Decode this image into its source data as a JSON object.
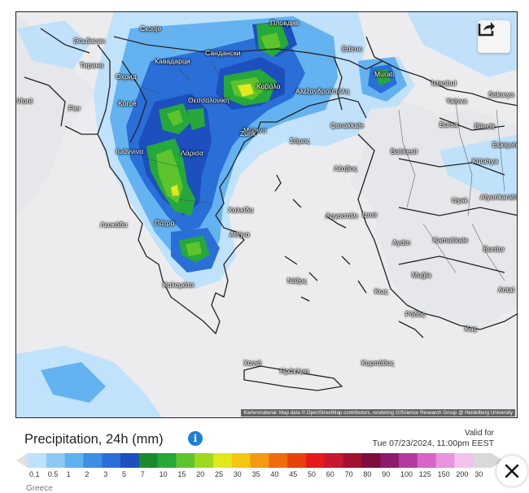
{
  "map": {
    "attribution": "Kartenmaterial: Map data © OpenStreetMap contributors, rendering GIScience Research Group @ Heidelberg University",
    "cities": [
      {
        "name": "Скопје"
      },
      {
        "name": "Пловдив"
      },
      {
        "name": "Эльбасан"
      },
      {
        "name": "Тирана"
      },
      {
        "name": "Кавадарци"
      },
      {
        "name": "Сандански"
      },
      {
        "name": "Edirne"
      },
      {
        "name": "Охрид"
      },
      {
        "name": "Murati"
      },
      {
        "name": "İstanbul"
      },
      {
        "name": "Vlorë"
      },
      {
        "name": "Korçë"
      },
      {
        "name": "Θεσσαλονίκη"
      },
      {
        "name": "Καβάλα"
      },
      {
        "name": "Αλεξανδρούπολη"
      },
      {
        "name": "Yalova"
      },
      {
        "name": "Sakarya"
      },
      {
        "name": "Fier"
      },
      {
        "name": "Bursa"
      },
      {
        "name": "Bilecik"
      },
      {
        "name": "Ιωάννινα"
      },
      {
        "name": "Λάρισα"
      },
      {
        "name": "Σάμος"
      },
      {
        "name": "Μύρινα"
      },
      {
        "name": "Çanakkale"
      },
      {
        "name": "Balıkesir"
      },
      {
        "name": "Eskişehir"
      },
      {
        "name": "Kütahya"
      },
      {
        "name": "Λευκάδα"
      },
      {
        "name": "Χαλκίδα"
      },
      {
        "name": "Izmir"
      },
      {
        "name": "Λέσβος"
      },
      {
        "name": "Uşak"
      },
      {
        "name": "Afyonkarahisar"
      },
      {
        "name": "Αργοστόλι"
      },
      {
        "name": "Πάτρα"
      },
      {
        "name": "Αθήνα"
      },
      {
        "name": "Aydın"
      },
      {
        "name": "Kamalıkale"
      },
      {
        "name": "Burdur"
      },
      {
        "name": "Muğla"
      },
      {
        "name": "Νάξος"
      },
      {
        "name": "Καλαμάτα"
      },
      {
        "name": "Κως"
      },
      {
        "name": "Antal"
      },
      {
        "name": "Ρόδος"
      },
      {
        "name": "Kaş"
      },
      {
        "name": "Χανιά"
      },
      {
        "name": "Ηράκλειο"
      },
      {
        "name": "Καρπάθος"
      },
      {
        "name": "Zurik"
      },
      {
        "name": "Kraljevo"
      }
    ]
  },
  "legend": {
    "title": "Precipitation, 24h (mm)",
    "info_icon": "info-icon",
    "valid_for": "Valid for",
    "valid_time": "Tue 07/23/2024, 11:00pm EEST",
    "region": "Greece",
    "scale": [
      {
        "label": "0.1",
        "color": "#bfe1fb"
      },
      {
        "label": "0.5",
        "color": "#8ec9f5"
      },
      {
        "label": "1",
        "color": "#5fb0ef"
      },
      {
        "label": "2",
        "color": "#3d8fe4"
      },
      {
        "label": "3",
        "color": "#2a6fd8"
      },
      {
        "label": "5",
        "color": "#1d4fbf"
      },
      {
        "label": "7",
        "color": "#1c8a2c"
      },
      {
        "label": "10",
        "color": "#26a83a"
      },
      {
        "label": "15",
        "color": "#5ec42e"
      },
      {
        "label": "20",
        "color": "#9ed91f"
      },
      {
        "label": "25",
        "color": "#e1e81c"
      },
      {
        "label": "30",
        "color": "#f3c611"
      },
      {
        "label": "35",
        "color": "#f39912"
      },
      {
        "label": "40",
        "color": "#f06b0e"
      },
      {
        "label": "45",
        "color": "#e8410d"
      },
      {
        "label": "50",
        "color": "#e41a1c"
      },
      {
        "label": "60",
        "color": "#c9182e"
      },
      {
        "label": "70",
        "color": "#a31231"
      },
      {
        "label": "80",
        "color": "#7e0c3c"
      },
      {
        "label": "90",
        "color": "#8e1b6e"
      },
      {
        "label": "100",
        "color": "#b53a9f"
      },
      {
        "label": "125",
        "color": "#d665c5"
      },
      {
        "label": "150",
        "color": "#e794dc"
      },
      {
        "label": "200",
        "color": "#f2c2ec"
      },
      {
        "label": "30",
        "color": "#d9d9d9"
      }
    ]
  },
  "controls": {
    "share_icon": "share-icon",
    "close_icon": "close-icon"
  }
}
